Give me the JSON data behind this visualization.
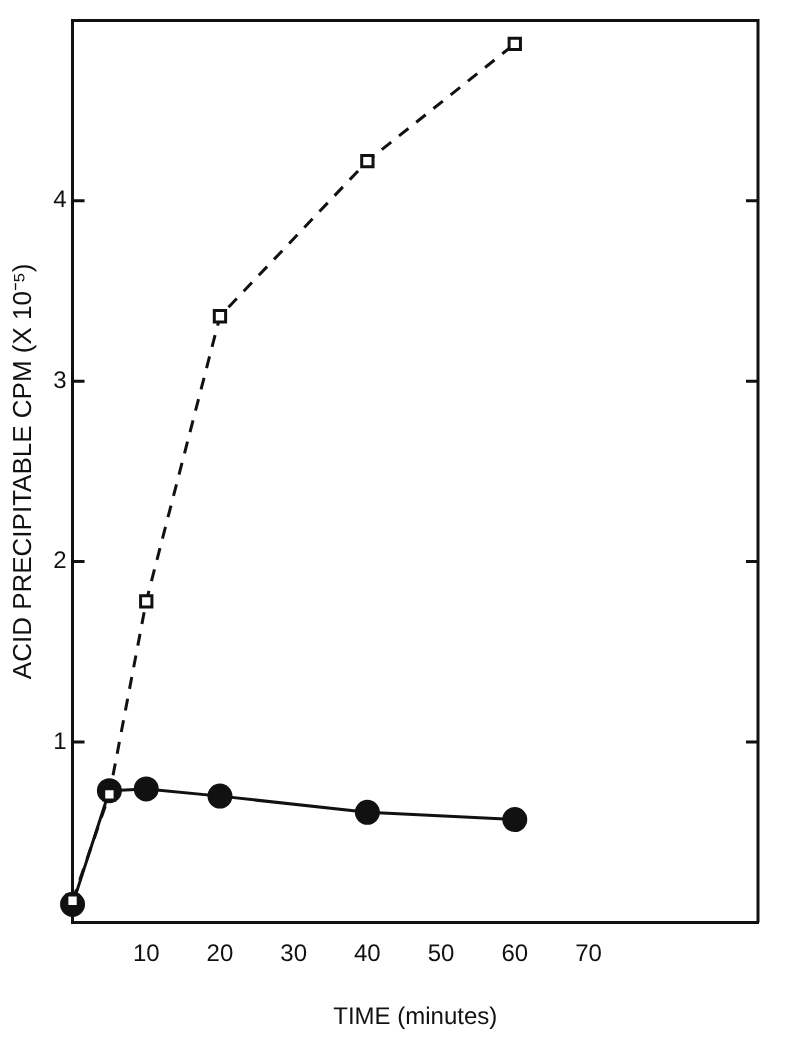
{
  "chart_data": {
    "type": "line",
    "xlabel": "TIME (minutes)",
    "ylabel": "ACID PRECIPITABLE CPM (X 10⁻⁵)",
    "xlim": [
      0,
      93
    ],
    "xticks": [
      10,
      20,
      30,
      40,
      50,
      60,
      70
    ],
    "ylim": [
      0,
      5
    ],
    "yticks": [
      1,
      2,
      3,
      4
    ],
    "grid": false,
    "legend": false,
    "series": [
      {
        "color": "#111111",
        "marker": "square",
        "line_style": "dashed",
        "x": [
          0,
          5,
          10,
          20,
          40,
          60
        ],
        "values": [
          0.12,
          0.71,
          1.78,
          3.36,
          4.22,
          4.87
        ]
      },
      {
        "color": "#111111",
        "marker": "circle",
        "line_style": "solid",
        "x": [
          0,
          5,
          10,
          20,
          40,
          60
        ],
        "values": [
          0.1,
          0.73,
          0.74,
          0.7,
          0.61,
          0.57
        ]
      }
    ]
  }
}
